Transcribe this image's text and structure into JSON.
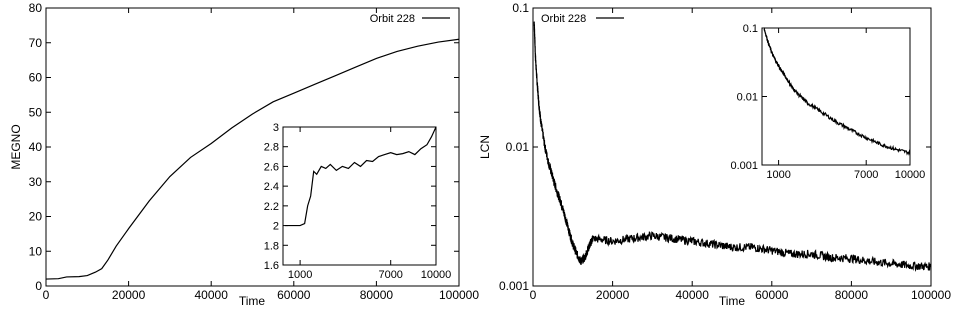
{
  "chart_data": [
    {
      "type": "line",
      "xlabel": "Time",
      "ylabel": "MEGNO",
      "xlim": [
        0,
        100000
      ],
      "ylim": [
        0,
        80
      ],
      "xticks": [
        "0",
        "20000",
        "40000",
        "60000",
        "80000",
        "100000"
      ],
      "yticks": [
        "0",
        "10",
        "20",
        "30",
        "40",
        "50",
        "60",
        "70",
        "80"
      ],
      "legend": "top-right",
      "series": [
        {
          "name": "Orbit 228",
          "x": [
            0,
            3000,
            5000,
            8000,
            10000,
            12000,
            13500,
            15000,
            17000,
            20000,
            25000,
            30000,
            35000,
            40000,
            45000,
            50000,
            55000,
            60000,
            65000,
            70000,
            75000,
            80000,
            85000,
            90000,
            95000,
            100000
          ],
          "y": [
            2,
            2.1,
            2.6,
            2.7,
            3,
            4,
            5,
            7.5,
            11.5,
            16.5,
            24.5,
            31.5,
            37,
            41,
            45.5,
            49.5,
            53,
            55.5,
            58,
            60.5,
            63,
            65.5,
            67.5,
            69,
            70.2,
            71
          ]
        }
      ],
      "inset": {
        "xticks": [
          "1000",
          "7000",
          "10000"
        ],
        "yticks": [
          "1.6",
          "1.8",
          "2",
          "2.2",
          "2.4",
          "2.6",
          "2.8",
          "3"
        ],
        "ylim": [
          1.6,
          3.0
        ],
        "x": [
          0,
          100,
          500,
          1000,
          1300,
          1500,
          1700,
          1900,
          2100,
          2400,
          2700,
          3000,
          3400,
          3800,
          4200,
          4600,
          5000,
          5400,
          5800,
          6200,
          6600,
          7000,
          7400,
          7800,
          8200,
          8600,
          9000,
          9400,
          9700,
          10000
        ],
        "y": [
          2.0,
          2.0,
          2.0,
          2.0,
          2.02,
          2.2,
          2.3,
          2.55,
          2.52,
          2.6,
          2.58,
          2.62,
          2.56,
          2.6,
          2.58,
          2.64,
          2.6,
          2.66,
          2.65,
          2.7,
          2.72,
          2.74,
          2.72,
          2.73,
          2.75,
          2.72,
          2.78,
          2.82,
          2.9,
          3.0
        ]
      }
    },
    {
      "type": "line",
      "xlabel": "Time",
      "ylabel": "LCN",
      "yscale": "log",
      "xlim": [
        0,
        100000
      ],
      "ylim": [
        0.001,
        0.1
      ],
      "xticks": [
        "0",
        "20000",
        "40000",
        "60000",
        "80000",
        "100000"
      ],
      "yticks": [
        "0.001",
        "0.01",
        "0.1"
      ],
      "legend": "top-left",
      "series": [
        {
          "name": "Orbit 228",
          "x": [
            300,
            600,
            1000,
            1500,
            2000,
            3000,
            4000,
            5000,
            6000,
            7000,
            8000,
            9000,
            10000,
            11000,
            12000,
            13000,
            14000,
            15000,
            20000,
            25000,
            30000,
            35000,
            40000,
            45000,
            50000,
            55000,
            60000,
            65000,
            70000,
            75000,
            80000,
            85000,
            90000,
            95000,
            100000
          ],
          "y": [
            0.08,
            0.045,
            0.03,
            0.02,
            0.015,
            0.01,
            0.0075,
            0.006,
            0.0048,
            0.004,
            0.0032,
            0.0025,
            0.002,
            0.0017,
            0.0015,
            0.0016,
            0.0019,
            0.0022,
            0.0021,
            0.0022,
            0.0023,
            0.0022,
            0.0021,
            0.002,
            0.0019,
            0.0019,
            0.0018,
            0.0017,
            0.0017,
            0.0016,
            0.00158,
            0.0015,
            0.00145,
            0.0014,
            0.00138
          ]
        }
      ],
      "inset": {
        "xticks": [
          "1000",
          "7000",
          "10000"
        ],
        "yticks": [
          "0.001",
          "0.01",
          "0.1"
        ],
        "ylim": [
          0.001,
          0.1
        ],
        "x": [
          0,
          300,
          600,
          1000,
          1500,
          2000,
          2500,
          3000,
          4000,
          5000,
          6000,
          7000,
          8000,
          9000,
          10000
        ],
        "y": [
          0.1,
          0.06,
          0.04,
          0.028,
          0.019,
          0.013,
          0.01,
          0.008,
          0.0058,
          0.0042,
          0.0032,
          0.0025,
          0.002,
          0.0017,
          0.0015
        ]
      }
    }
  ]
}
